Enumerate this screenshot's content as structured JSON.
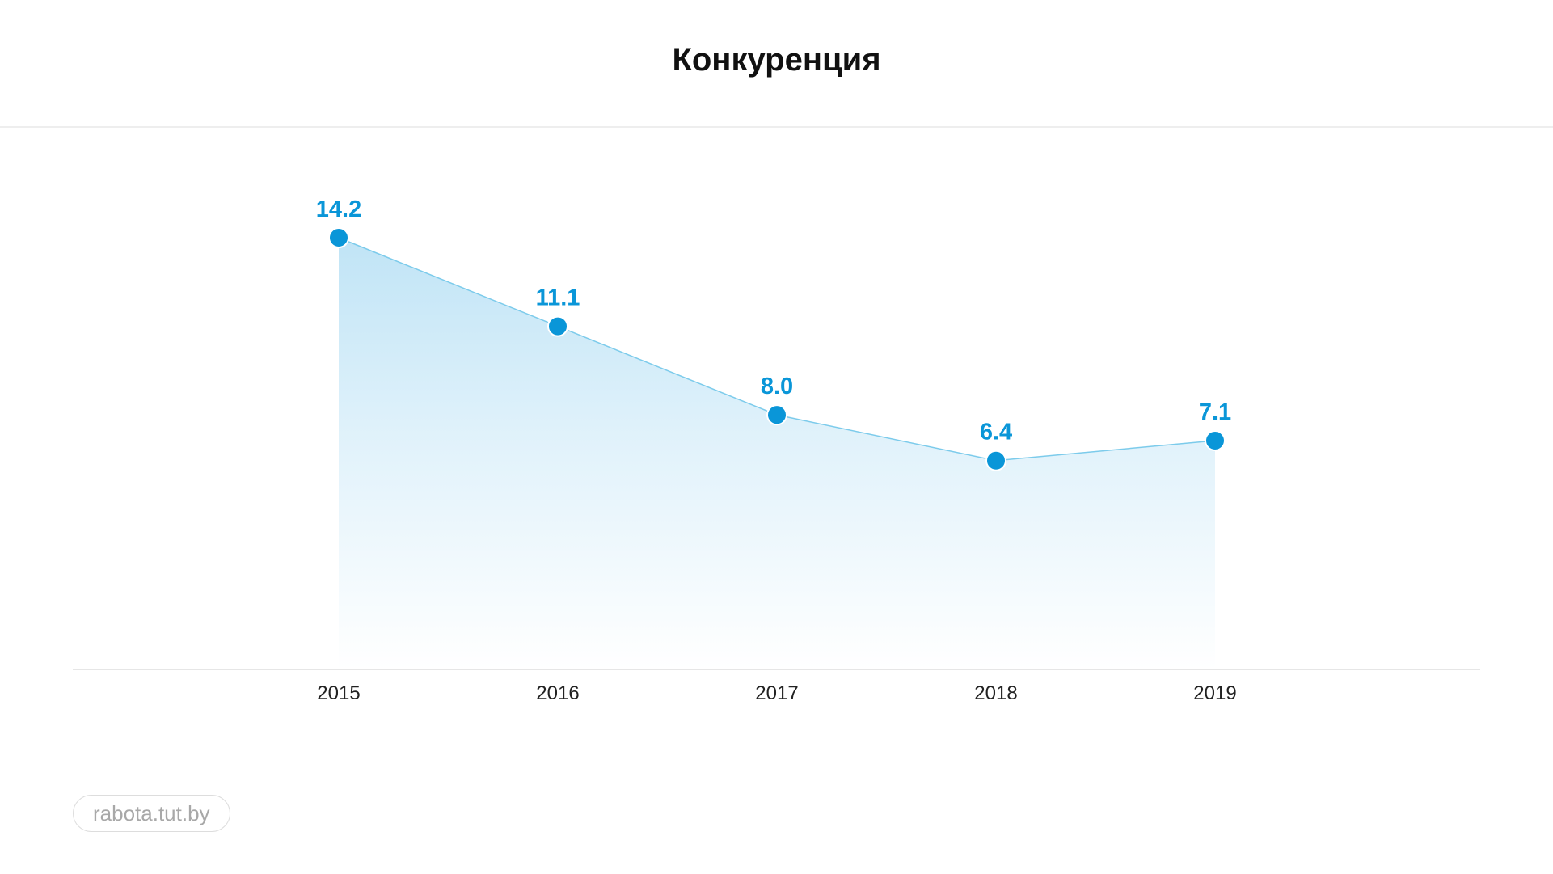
{
  "header": {
    "title": "Конкуренция"
  },
  "footer": {
    "source": "rabota.tut.by"
  },
  "colors": {
    "accent": "#0a96d8",
    "line": "#7ccbeb",
    "fill_top": "#b9e1f5",
    "axis": "#e6e6e6",
    "marker_outline": "#ffffff"
  },
  "chart_data": {
    "type": "area",
    "title": "Конкуренция",
    "xlabel": "",
    "ylabel": "",
    "categories": [
      "2015",
      "2016",
      "2017",
      "2018",
      "2019"
    ],
    "values": [
      14.2,
      11.1,
      8.0,
      6.4,
      7.1
    ],
    "data_labels": [
      "14.2",
      "11.1",
      "8.0",
      "6.4",
      "7.1"
    ],
    "grid": false,
    "legend": "none"
  }
}
